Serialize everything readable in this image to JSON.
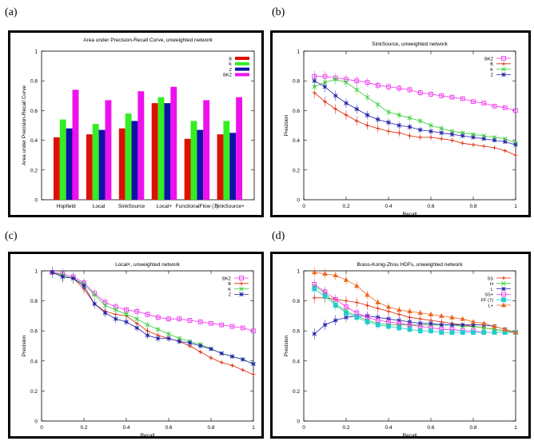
{
  "panels": {
    "a": {
      "label": "(a)"
    },
    "b": {
      "label": "(b)"
    },
    "c": {
      "label": "(c)"
    },
    "d": {
      "label": "(d)"
    }
  },
  "chart_data": [
    {
      "id": "a",
      "type": "bar",
      "title": "Area under Precision-Recall Curve, unweighted network",
      "xlabel": "",
      "ylabel": "Area under Precision-Recall Curve",
      "ylim": [
        0,
        1
      ],
      "yticks": [
        "0",
        "0.2",
        "0.4",
        "0.6",
        "0.8",
        "1"
      ],
      "categories": [
        "Hopfield",
        "Local",
        "SinkSource",
        "Local+",
        "FunctionalFlow (7)",
        "SinkSource+"
      ],
      "series": [
        {
          "name": "B",
          "color": "#dd1100",
          "values": [
            0.42,
            0.44,
            0.48,
            0.65,
            0.41,
            0.44
          ]
        },
        {
          "name": "K",
          "color": "#33ee22",
          "values": [
            0.54,
            0.51,
            0.58,
            0.69,
            0.53,
            0.53
          ]
        },
        {
          "name": "Z",
          "color": "#1111aa",
          "values": [
            0.48,
            0.47,
            0.53,
            0.65,
            0.47,
            0.45
          ]
        },
        {
          "name": "BKZ",
          "color": "#ee11ee",
          "values": [
            0.74,
            0.67,
            0.73,
            0.76,
            0.67,
            0.69
          ]
        }
      ],
      "legend": "top-right"
    },
    {
      "id": "b",
      "type": "line",
      "title": "SinkSource, unweighted network",
      "xlabel": "Recall",
      "ylabel": "Precision",
      "xlim": [
        0,
        1
      ],
      "ylim": [
        0,
        1
      ],
      "xticks": [
        "0",
        "0.2",
        "0.4",
        "0.6",
        "0.8",
        "1"
      ],
      "yticks": [
        "0",
        "0.2",
        "0.4",
        "0.6",
        "0.8",
        "1"
      ],
      "x": [
        0.05,
        0.1,
        0.15,
        0.2,
        0.25,
        0.3,
        0.35,
        0.4,
        0.45,
        0.5,
        0.55,
        0.6,
        0.65,
        0.7,
        0.75,
        0.8,
        0.85,
        0.9,
        0.95,
        1.0
      ],
      "series": [
        {
          "name": "BKZ",
          "color": "#ee33ee",
          "marker": "square",
          "values": [
            0.83,
            0.83,
            0.82,
            0.81,
            0.8,
            0.79,
            0.77,
            0.76,
            0.75,
            0.74,
            0.72,
            0.71,
            0.7,
            0.69,
            0.68,
            0.66,
            0.65,
            0.63,
            0.62,
            0.6
          ]
        },
        {
          "name": "B",
          "color": "#dd2200",
          "marker": "plus",
          "values": [
            0.72,
            0.66,
            0.61,
            0.57,
            0.53,
            0.5,
            0.48,
            0.46,
            0.45,
            0.43,
            0.42,
            0.42,
            0.41,
            0.4,
            0.38,
            0.37,
            0.36,
            0.35,
            0.33,
            0.3
          ]
        },
        {
          "name": "K",
          "color": "#33cc33",
          "marker": "x",
          "values": [
            0.76,
            0.79,
            0.81,
            0.79,
            0.74,
            0.69,
            0.64,
            0.59,
            0.57,
            0.55,
            0.53,
            0.5,
            0.48,
            0.46,
            0.45,
            0.44,
            0.43,
            0.42,
            0.41,
            0.38
          ]
        },
        {
          "name": "Z",
          "color": "#2222aa",
          "marker": "star",
          "values": [
            0.8,
            0.76,
            0.7,
            0.65,
            0.61,
            0.57,
            0.54,
            0.52,
            0.5,
            0.49,
            0.47,
            0.46,
            0.45,
            0.44,
            0.43,
            0.42,
            0.41,
            0.4,
            0.39,
            0.37
          ]
        }
      ],
      "legend": "top-right"
    },
    {
      "id": "c",
      "type": "line",
      "title": "Local+, unweighted network",
      "xlabel": "Recall",
      "ylabel": "Precision",
      "xlim": [
        0,
        1
      ],
      "ylim": [
        0,
        1
      ],
      "xticks": [
        "0",
        "0.2",
        "0.4",
        "0.6",
        "0.8",
        "1"
      ],
      "yticks": [
        "0",
        "0.2",
        "0.4",
        "0.6",
        "0.8",
        "1"
      ],
      "x": [
        0.05,
        0.1,
        0.15,
        0.2,
        0.25,
        0.3,
        0.35,
        0.4,
        0.45,
        0.5,
        0.55,
        0.6,
        0.65,
        0.7,
        0.75,
        0.8,
        0.85,
        0.9,
        0.95,
        1.0
      ],
      "series": [
        {
          "name": "BKZ",
          "color": "#ee33ee",
          "marker": "square",
          "values": [
            0.99,
            0.98,
            0.96,
            0.92,
            0.85,
            0.79,
            0.76,
            0.74,
            0.73,
            0.71,
            0.69,
            0.68,
            0.68,
            0.67,
            0.66,
            0.65,
            0.64,
            0.63,
            0.62,
            0.6
          ]
        },
        {
          "name": "B",
          "color": "#dd2200",
          "marker": "plus",
          "values": [
            0.99,
            0.96,
            0.95,
            0.88,
            0.78,
            0.73,
            0.71,
            0.7,
            0.65,
            0.6,
            0.57,
            0.55,
            0.53,
            0.5,
            0.46,
            0.42,
            0.39,
            0.37,
            0.34,
            0.31
          ]
        },
        {
          "name": "K",
          "color": "#33cc33",
          "marker": "x",
          "values": [
            0.99,
            0.97,
            0.95,
            0.91,
            0.84,
            0.77,
            0.74,
            0.71,
            0.68,
            0.64,
            0.61,
            0.58,
            0.55,
            0.53,
            0.51,
            0.48,
            0.45,
            0.43,
            0.41,
            0.38
          ]
        },
        {
          "name": "Z",
          "color": "#2222aa",
          "marker": "star",
          "values": [
            0.99,
            0.96,
            0.95,
            0.9,
            0.78,
            0.72,
            0.68,
            0.66,
            0.62,
            0.57,
            0.55,
            0.55,
            0.53,
            0.52,
            0.5,
            0.48,
            0.45,
            0.43,
            0.41,
            0.38
          ]
        }
      ],
      "legend": "top-right"
    },
    {
      "id": "d",
      "type": "line",
      "title": "Brass-Konig-Zhou HDFs, unweighted network",
      "xlabel": "Recall",
      "ylabel": "Precision",
      "xlim": [
        0,
        1
      ],
      "ylim": [
        0,
        1
      ],
      "xticks": [
        "0",
        "0.2",
        "0.4",
        "0.6",
        "0.8",
        "1"
      ],
      "yticks": [
        "0",
        "0.2",
        "0.4",
        "0.6",
        "0.8",
        "1"
      ],
      "x": [
        0.05,
        0.1,
        0.15,
        0.2,
        0.25,
        0.3,
        0.35,
        0.4,
        0.45,
        0.5,
        0.55,
        0.6,
        0.65,
        0.7,
        0.75,
        0.8,
        0.85,
        0.9,
        0.95,
        1.0
      ],
      "series": [
        {
          "name": "SS",
          "color": "#dd2200",
          "marker": "plus",
          "values": [
            0.82,
            0.82,
            0.81,
            0.8,
            0.79,
            0.77,
            0.75,
            0.73,
            0.71,
            0.69,
            0.68,
            0.67,
            0.66,
            0.65,
            0.64,
            0.63,
            0.62,
            0.61,
            0.6,
            0.59
          ]
        },
        {
          "name": "H",
          "color": "#33cc33",
          "marker": "x",
          "values": [
            0.9,
            0.85,
            0.78,
            0.73,
            0.7,
            0.67,
            0.65,
            0.64,
            0.64,
            0.64,
            0.64,
            0.64,
            0.64,
            0.64,
            0.63,
            0.63,
            0.62,
            0.61,
            0.6,
            0.59
          ]
        },
        {
          "name": "L",
          "color": "#2222aa",
          "marker": "star",
          "values": [
            0.58,
            0.64,
            0.67,
            0.69,
            0.7,
            0.7,
            0.69,
            0.68,
            0.67,
            0.66,
            0.65,
            0.65,
            0.64,
            0.64,
            0.64,
            0.64,
            0.64,
            0.63,
            0.61,
            0.59
          ]
        },
        {
          "name": "SS+",
          "color": "#ee33ee",
          "marker": "square",
          "values": [
            0.91,
            0.86,
            0.81,
            0.76,
            0.72,
            0.69,
            0.67,
            0.66,
            0.65,
            0.64,
            0.63,
            0.62,
            0.61,
            0.61,
            0.6,
            0.6,
            0.59,
            0.59,
            0.59,
            0.59
          ]
        },
        {
          "name": "FF (7)",
          "color": "#22cccc",
          "marker": "square-filled",
          "values": [
            0.88,
            0.83,
            0.77,
            0.72,
            0.69,
            0.66,
            0.64,
            0.63,
            0.62,
            0.61,
            0.6,
            0.6,
            0.59,
            0.59,
            0.59,
            0.59,
            0.59,
            0.59,
            0.59,
            0.59
          ]
        },
        {
          "name": "L+",
          "color": "#ee6622",
          "marker": "triangle",
          "values": [
            0.99,
            0.98,
            0.97,
            0.94,
            0.9,
            0.84,
            0.79,
            0.76,
            0.74,
            0.73,
            0.72,
            0.71,
            0.7,
            0.69,
            0.68,
            0.66,
            0.65,
            0.63,
            0.61,
            0.59
          ]
        }
      ],
      "legend": "top-right"
    }
  ]
}
